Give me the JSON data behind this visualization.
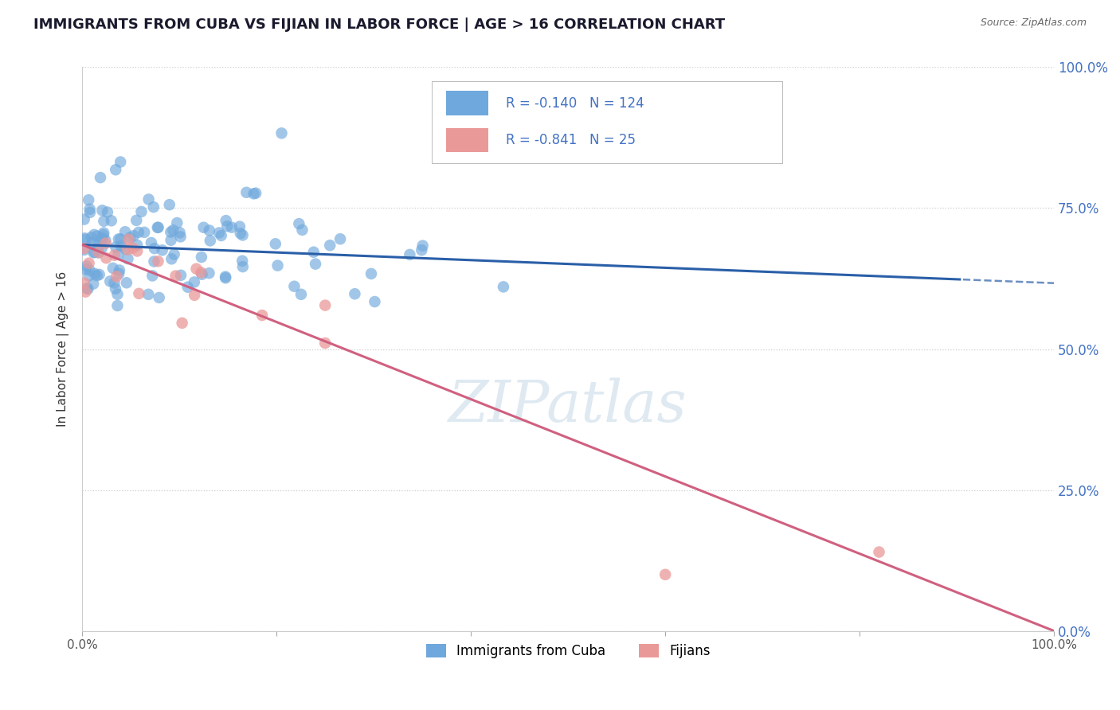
{
  "title": "IMMIGRANTS FROM CUBA VS FIJIAN IN LABOR FORCE | AGE > 16 CORRELATION CHART",
  "source": "Source: ZipAtlas.com",
  "ylabel": "In Labor Force | Age > 16",
  "right_ytick_labels": [
    "0.0%",
    "25.0%",
    "50.0%",
    "75.0%",
    "100.0%"
  ],
  "right_ytick_values": [
    0,
    0.25,
    0.5,
    0.75,
    1.0
  ],
  "xlim": [
    0,
    1.0
  ],
  "ylim": [
    0,
    1.0
  ],
  "cuba_R": -0.14,
  "cuba_N": 124,
  "fijian_R": -0.841,
  "fijian_N": 25,
  "cuba_color": "#6fa8dc",
  "fijian_color": "#ea9999",
  "cuba_line_color": "#2a5fa8",
  "fijian_line_color": "#d06080",
  "legend_labels": [
    "Immigrants from Cuba",
    "Fijians"
  ],
  "watermark": "ZIPatlas",
  "background_color": "#ffffff",
  "grid_color": "#cccccc",
  "title_color": "#1a1a2e",
  "axis_label_color": "#333333",
  "right_axis_color": "#4472c4",
  "title_fontsize": 13,
  "label_fontsize": 11,
  "tick_fontsize": 11,
  "cuba_seed": 42,
  "fijian_seed": 99,
  "cuba_intercept": 0.685,
  "cuba_slope": -0.068,
  "fijian_intercept": 0.685,
  "fijian_slope": -0.685
}
